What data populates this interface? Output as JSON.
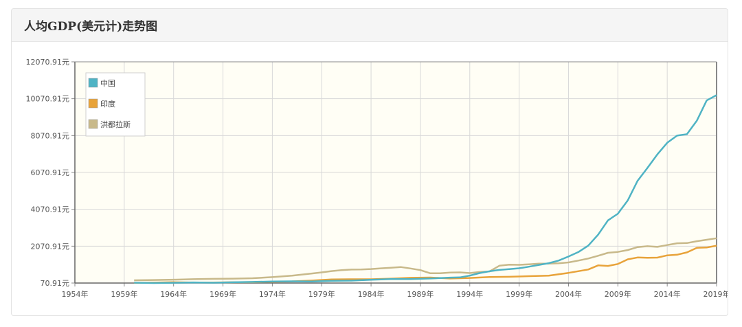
{
  "panel": {
    "title": "人均GDP(美元计)走势图"
  },
  "chart_data": {
    "type": "line",
    "title": "人均GDP(美元计)走势图",
    "xlabel": "",
    "ylabel": "",
    "xlim": [
      1954,
      2019
    ],
    "ylim": [
      70.91,
      12070.91
    ],
    "x_ticks": [
      "1954年",
      "1959年",
      "1964年",
      "1969年",
      "1974年",
      "1979年",
      "1984年",
      "1989年",
      "1994年",
      "1999年",
      "2004年",
      "2009年",
      "2014年",
      "2019年"
    ],
    "y_ticks": [
      "70.91元",
      "2070.91元",
      "4070.91元",
      "6070.91元",
      "8070.91元",
      "10070.91元",
      "12070.91元"
    ],
    "grid": true,
    "legend_position": "top-left",
    "series": [
      {
        "name": "中国",
        "color": "#4fb3c4",
        "points": [
          [
            1960,
            90
          ],
          [
            1962,
            71
          ],
          [
            1964,
            85
          ],
          [
            1966,
            104
          ],
          [
            1968,
            91
          ],
          [
            1970,
            113
          ],
          [
            1972,
            132
          ],
          [
            1974,
            157
          ],
          [
            1976,
            165
          ],
          [
            1978,
            156
          ],
          [
            1980,
            195
          ],
          [
            1982,
            203
          ],
          [
            1984,
            251
          ],
          [
            1986,
            282
          ],
          [
            1988,
            284
          ],
          [
            1990,
            318
          ],
          [
            1992,
            366
          ],
          [
            1993,
            377
          ],
          [
            1994,
            473
          ],
          [
            1995,
            610
          ],
          [
            1996,
            709
          ],
          [
            1997,
            782
          ],
          [
            1998,
            829
          ],
          [
            1999,
            873
          ],
          [
            2000,
            959
          ],
          [
            2001,
            1053
          ],
          [
            2002,
            1149
          ],
          [
            2003,
            1289
          ],
          [
            2004,
            1509
          ],
          [
            2005,
            1753
          ],
          [
            2006,
            2099
          ],
          [
            2007,
            2694
          ],
          [
            2008,
            3468
          ],
          [
            2009,
            3832
          ],
          [
            2010,
            4550
          ],
          [
            2011,
            5618
          ],
          [
            2012,
            6317
          ],
          [
            2013,
            7051
          ],
          [
            2014,
            7679
          ],
          [
            2015,
            8067
          ],
          [
            2016,
            8148
          ],
          [
            2017,
            8879
          ],
          [
            2018,
            9977
          ],
          [
            2019,
            10262
          ]
        ]
      },
      {
        "name": "印度",
        "color": "#e8a33a",
        "points": [
          [
            1960,
            82
          ],
          [
            1962,
            92
          ],
          [
            1964,
            116
          ],
          [
            1966,
            99
          ],
          [
            1968,
            99
          ],
          [
            1970,
            112
          ],
          [
            1972,
            118
          ],
          [
            1974,
            143
          ],
          [
            1976,
            160
          ],
          [
            1978,
            206
          ],
          [
            1980,
            267
          ],
          [
            1982,
            275
          ],
          [
            1984,
            277
          ],
          [
            1986,
            310
          ],
          [
            1988,
            356
          ],
          [
            1990,
            368
          ],
          [
            1992,
            318
          ],
          [
            1994,
            346
          ],
          [
            1996,
            400
          ],
          [
            1998,
            411
          ],
          [
            2000,
            443
          ],
          [
            2002,
            471
          ],
          [
            2004,
            624
          ],
          [
            2006,
            806
          ],
          [
            2007,
            1028
          ],
          [
            2008,
            999
          ],
          [
            2009,
            1102
          ],
          [
            2010,
            1358
          ],
          [
            2011,
            1458
          ],
          [
            2012,
            1444
          ],
          [
            2013,
            1450
          ],
          [
            2014,
            1574
          ],
          [
            2015,
            1606
          ],
          [
            2016,
            1733
          ],
          [
            2017,
            1982
          ],
          [
            2018,
            1996
          ],
          [
            2019,
            2100
          ]
        ]
      },
      {
        "name": "洪都拉斯",
        "color": "#c8b98a",
        "points": [
          [
            1960,
            220
          ],
          [
            1962,
            235
          ],
          [
            1964,
            255
          ],
          [
            1966,
            280
          ],
          [
            1968,
            300
          ],
          [
            1970,
            310
          ],
          [
            1972,
            330
          ],
          [
            1974,
            390
          ],
          [
            1976,
            470
          ],
          [
            1978,
            590
          ],
          [
            1979,
            650
          ],
          [
            1980,
            720
          ],
          [
            1981,
            770
          ],
          [
            1982,
            800
          ],
          [
            1983,
            810
          ],
          [
            1984,
            830
          ],
          [
            1985,
            870
          ],
          [
            1986,
            900
          ],
          [
            1987,
            940
          ],
          [
            1988,
            860
          ],
          [
            1989,
            770
          ],
          [
            1990,
            600
          ],
          [
            1991,
            600
          ],
          [
            1992,
            640
          ],
          [
            1993,
            650
          ],
          [
            1994,
            610
          ],
          [
            1995,
            670
          ],
          [
            1996,
            700
          ],
          [
            1997,
            1010
          ],
          [
            1998,
            1070
          ],
          [
            1999,
            1060
          ],
          [
            2000,
            1090
          ],
          [
            2001,
            1120
          ],
          [
            2002,
            1120
          ],
          [
            2003,
            1140
          ],
          [
            2004,
            1190
          ],
          [
            2005,
            1290
          ],
          [
            2006,
            1400
          ],
          [
            2007,
            1550
          ],
          [
            2008,
            1710
          ],
          [
            2009,
            1760
          ],
          [
            2010,
            1860
          ],
          [
            2011,
            2020
          ],
          [
            2012,
            2070
          ],
          [
            2013,
            2030
          ],
          [
            2014,
            2130
          ],
          [
            2015,
            2230
          ],
          [
            2016,
            2240
          ],
          [
            2017,
            2340
          ],
          [
            2018,
            2420
          ],
          [
            2019,
            2500
          ]
        ]
      }
    ]
  }
}
